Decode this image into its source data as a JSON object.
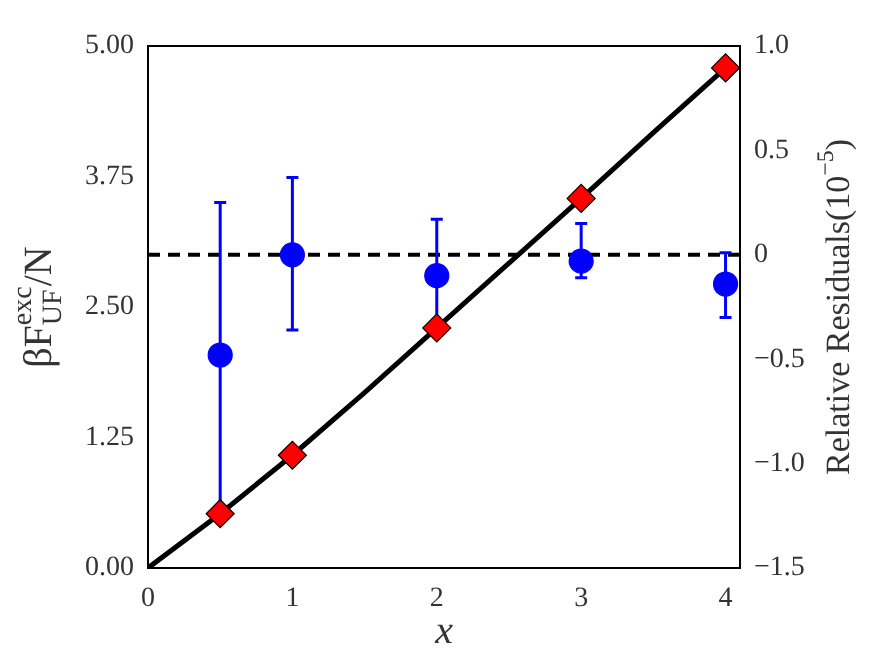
{
  "chart_data": {
    "type": "scatter",
    "xlabel": "x",
    "ylabel": "βF$^{exc}$$_{UF}$/N",
    "y2label": "Relative Residuals(10$^{−5}$)",
    "x": [
      0.5,
      1,
      2,
      3,
      4
    ],
    "xlim": [
      0,
      4.1
    ],
    "xticks": [
      0,
      1,
      2,
      3,
      4
    ],
    "ylim": [
      0,
      5
    ],
    "yticks": [
      {
        "value": 0,
        "label": "0.00"
      },
      {
        "value": 1.25,
        "label": "1.25"
      },
      {
        "value": 2.5,
        "label": "2.50"
      },
      {
        "value": 3.75,
        "label": "3.75"
      },
      {
        "value": 5,
        "label": "5.00"
      }
    ],
    "y2lim": [
      -1.5,
      1
    ],
    "y2ticks": [
      {
        "value": -1.5,
        "label": "−1.5"
      },
      {
        "value": -1,
        "label": "−1.0"
      },
      {
        "value": -0.5,
        "label": "−0.5"
      },
      0,
      {
        "value": 0.5,
        "label": "0.5"
      },
      {
        "value": 1,
        "label": "1.0"
      }
    ],
    "series": [
      {
        "type": "line",
        "color": "#000000",
        "marker": "none",
        "x": [
          0,
          0.5,
          1,
          1.5,
          2,
          2.5,
          3,
          3.5,
          4
        ],
        "values": [
          0,
          0.52,
          1.08,
          1.68,
          2.3,
          2.92,
          3.54,
          4.17,
          4.79
        ]
      },
      {
        "color": "#0000ff",
        "marker": "circle",
        "axis": "y2",
        "values": [
          -0.48,
          0,
          -0.1,
          -0.03,
          -0.14
        ],
        "errors": [
          [
            -1.22,
            0.25
          ],
          [
            -0.36,
            0.37
          ],
          [
            -0.35,
            0.17
          ],
          [
            -0.11,
            0.15
          ],
          [
            -0.3,
            0.01
          ]
        ]
      },
      {
        "color": "#ff0000",
        "marker": "diamond",
        "values": [
          0.52,
          1.08,
          2.3,
          3.54,
          4.79
        ]
      }
    ],
    "ref_lines": [
      {
        "axis": "y2",
        "value": 0,
        "color": "#000000",
        "line_style": "dashed"
      }
    ],
    "grid": false,
    "legend": false
  }
}
